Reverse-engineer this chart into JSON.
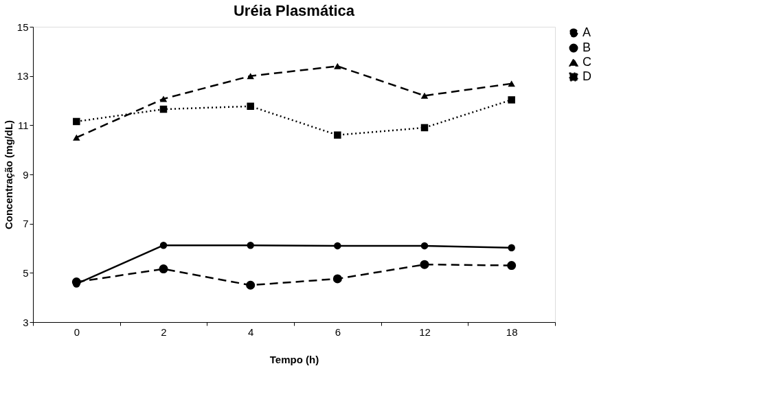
{
  "chart_data": {
    "type": "line",
    "title": "Uréia Plasmática",
    "xlabel": "Tempo (h)",
    "ylabel": "Concentração (mg/dL)",
    "categories": [
      "0",
      "2",
      "4",
      "6",
      "12",
      "18"
    ],
    "series": [
      {
        "name": "A",
        "color": "#000000",
        "marker": "circle",
        "line_style": "dashed",
        "values": [
          4.63,
          5.16,
          4.5,
          4.76,
          5.34,
          5.3
        ]
      },
      {
        "name": "B",
        "color": "#000000",
        "marker": "circle",
        "line_style": "solid",
        "values": [
          4.55,
          6.12,
          6.12,
          6.1,
          6.1,
          6.02
        ]
      },
      {
        "name": "C",
        "color": "#000000",
        "marker": "triangle",
        "line_style": "dashed",
        "values": [
          10.5,
          12.07,
          13.0,
          13.4,
          12.2,
          12.69
        ]
      },
      {
        "name": "D",
        "color": "#000000",
        "marker": "square",
        "line_style": "dotted",
        "values": [
          11.15,
          11.65,
          11.77,
          10.6,
          10.9,
          12.03
        ]
      }
    ],
    "ylim": [
      3,
      15
    ],
    "yticks": [
      3,
      5,
      7,
      9,
      11,
      13,
      15
    ],
    "grid": false,
    "legend": "right"
  }
}
